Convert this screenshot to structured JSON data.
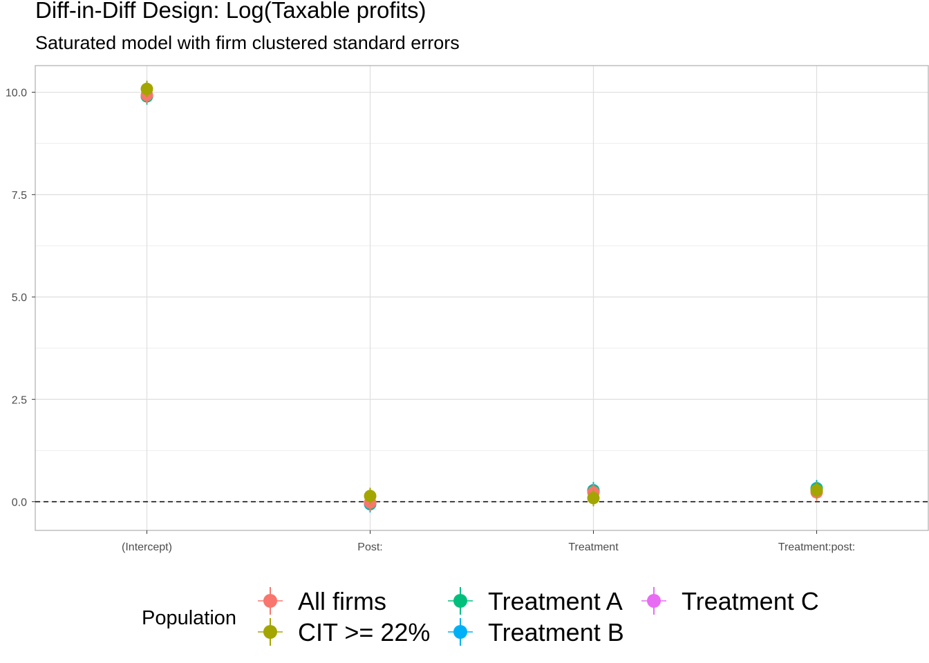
{
  "title": "Diff-in-Diff Design: Log(Taxable profits)",
  "subtitle": "Saturated model with firm clustered standard errors",
  "chart_data": {
    "type": "scatter",
    "title": "Diff-in-Diff Design: Log(Taxable profits)",
    "subtitle": "Saturated model with firm clustered standard errors",
    "xlabel": "",
    "ylabel": "",
    "categories": [
      "(Intercept)",
      "Post:",
      "Treatment",
      "Treatment:post:"
    ],
    "ylim": [
      -0.7,
      10.65
    ],
    "yticks": [
      0.0,
      2.5,
      5.0,
      7.5,
      10.0
    ],
    "ytick_labels": [
      "0.0",
      "2.5",
      "5.0",
      "7.5",
      "10.0"
    ],
    "reference_line": {
      "y": 0,
      "style": "dashed"
    },
    "grid": true,
    "legend": {
      "title": "Population",
      "position": "bottom"
    },
    "series": [
      {
        "name": "All firms",
        "color": "#F8766D",
        "values": [
          9.93,
          -0.02,
          0.23,
          0.23
        ]
      },
      {
        "name": "CIT >= 22%",
        "color": "#A3A500",
        "values": [
          10.08,
          0.14,
          0.09,
          0.28
        ]
      },
      {
        "name": "Treatment A",
        "color": "#00BF7D",
        "values": [
          9.9,
          -0.04,
          0.27,
          0.31
        ]
      },
      {
        "name": "Treatment B",
        "color": "#00B0F6",
        "values": [
          9.9,
          -0.06,
          0.28,
          0.33
        ]
      },
      {
        "name": "Treatment C",
        "color": "#E76BF3",
        "values": [
          9.91,
          -0.05,
          0.26,
          0.29
        ]
      }
    ]
  }
}
